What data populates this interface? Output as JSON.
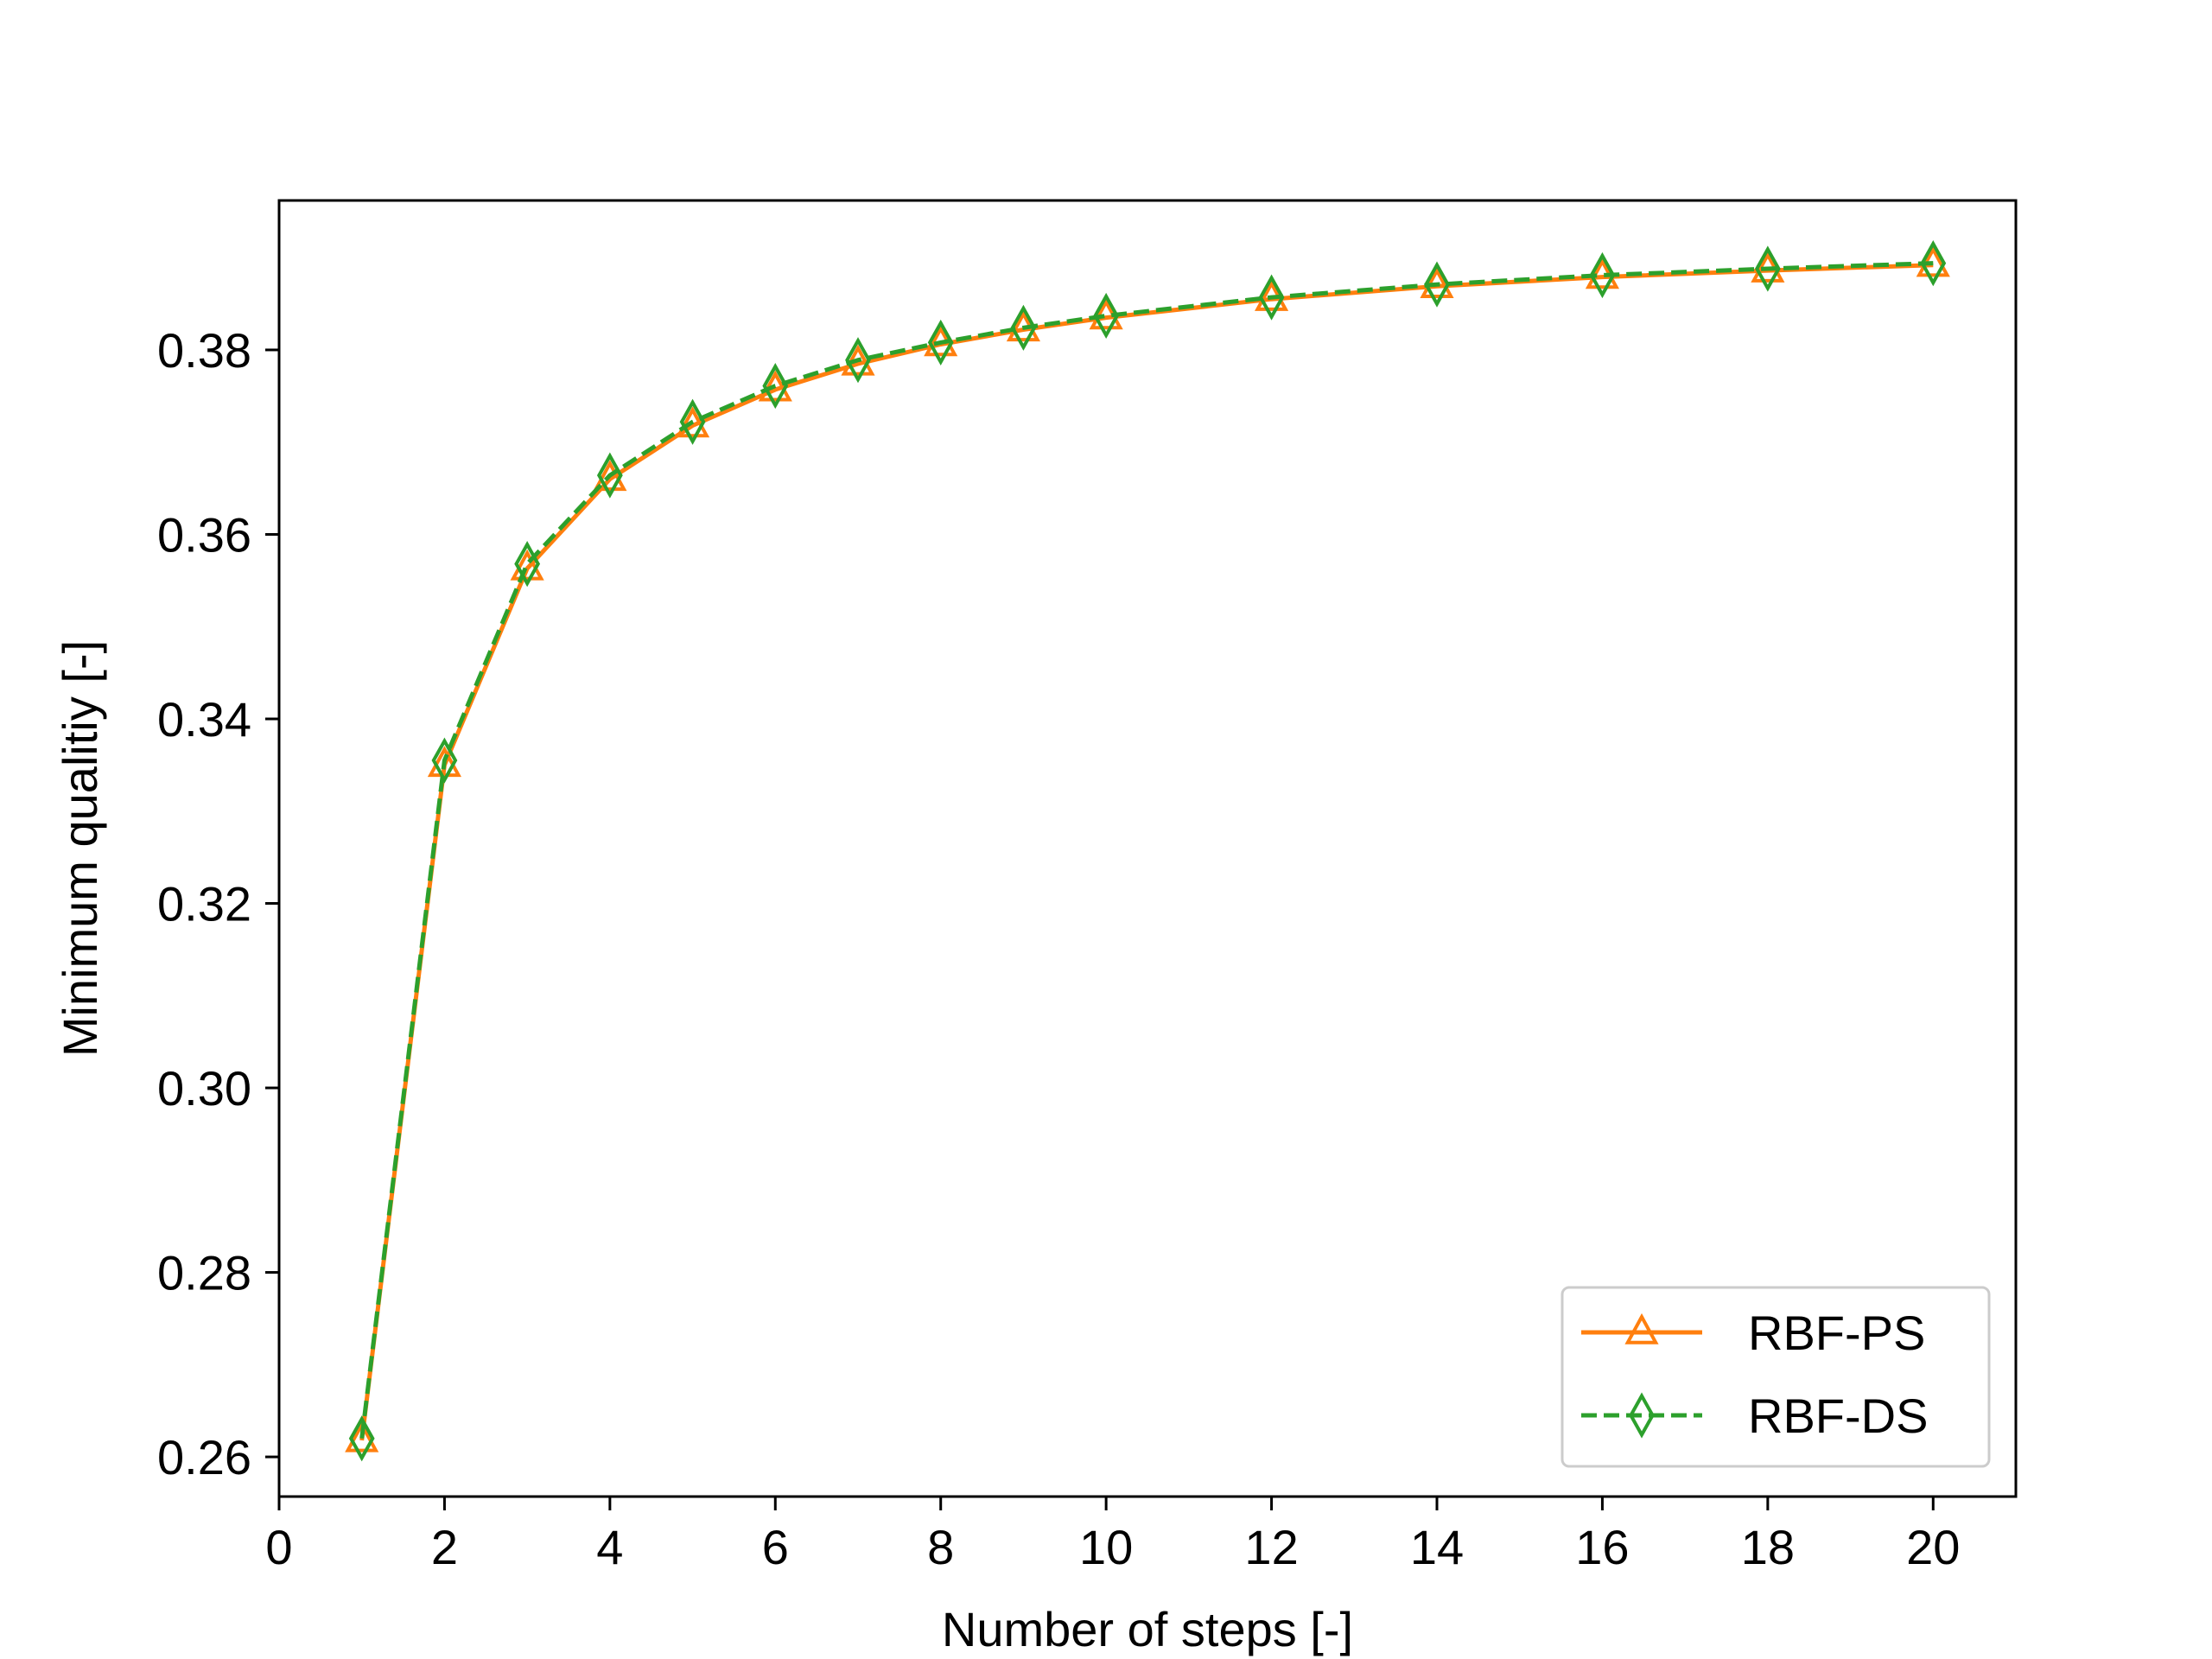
{
  "chart_data": {
    "type": "line",
    "xlabel": "Number of steps [-]",
    "ylabel": "Minimum qualitiy [-]",
    "xlim": [
      0,
      21
    ],
    "ylim": [
      0.2557,
      0.3962
    ],
    "xticks": [
      0,
      2,
      4,
      6,
      8,
      10,
      12,
      14,
      16,
      18,
      20
    ],
    "yticks": [
      0.26,
      0.28,
      0.3,
      0.32,
      0.34,
      0.36,
      0.38
    ],
    "xtick_labels": [
      "0",
      "2",
      "4",
      "6",
      "8",
      "10",
      "12",
      "14",
      "16",
      "18",
      "20"
    ],
    "ytick_labels": [
      "0.26",
      "0.28",
      "0.30",
      "0.32",
      "0.34",
      "0.36",
      "0.38"
    ],
    "x": [
      1,
      2,
      3,
      4,
      5,
      6,
      7,
      8,
      9,
      10,
      12,
      14,
      16,
      18,
      20
    ],
    "series": [
      {
        "name": "RBF-PS",
        "color": "#ff7f0e",
        "linestyle": "solid",
        "marker": "triangle-up-open",
        "values": [
          0.2618,
          0.335,
          0.3563,
          0.366,
          0.3718,
          0.3757,
          0.3785,
          0.3806,
          0.3822,
          0.3835,
          0.3855,
          0.3869,
          0.3879,
          0.3886,
          0.3892
        ]
      },
      {
        "name": "RBF-DS",
        "color": "#2ca02c",
        "linestyle": "dashed",
        "marker": "diamond-open",
        "values": [
          0.262,
          0.3355,
          0.3568,
          0.3664,
          0.3722,
          0.3761,
          0.3789,
          0.3808,
          0.3824,
          0.3837,
          0.3857,
          0.3871,
          0.3881,
          0.3888,
          0.3894
        ]
      }
    ],
    "legend": {
      "position": "lower-right",
      "entries": [
        "RBF-PS",
        "RBF-DS"
      ]
    },
    "grid": false
  }
}
